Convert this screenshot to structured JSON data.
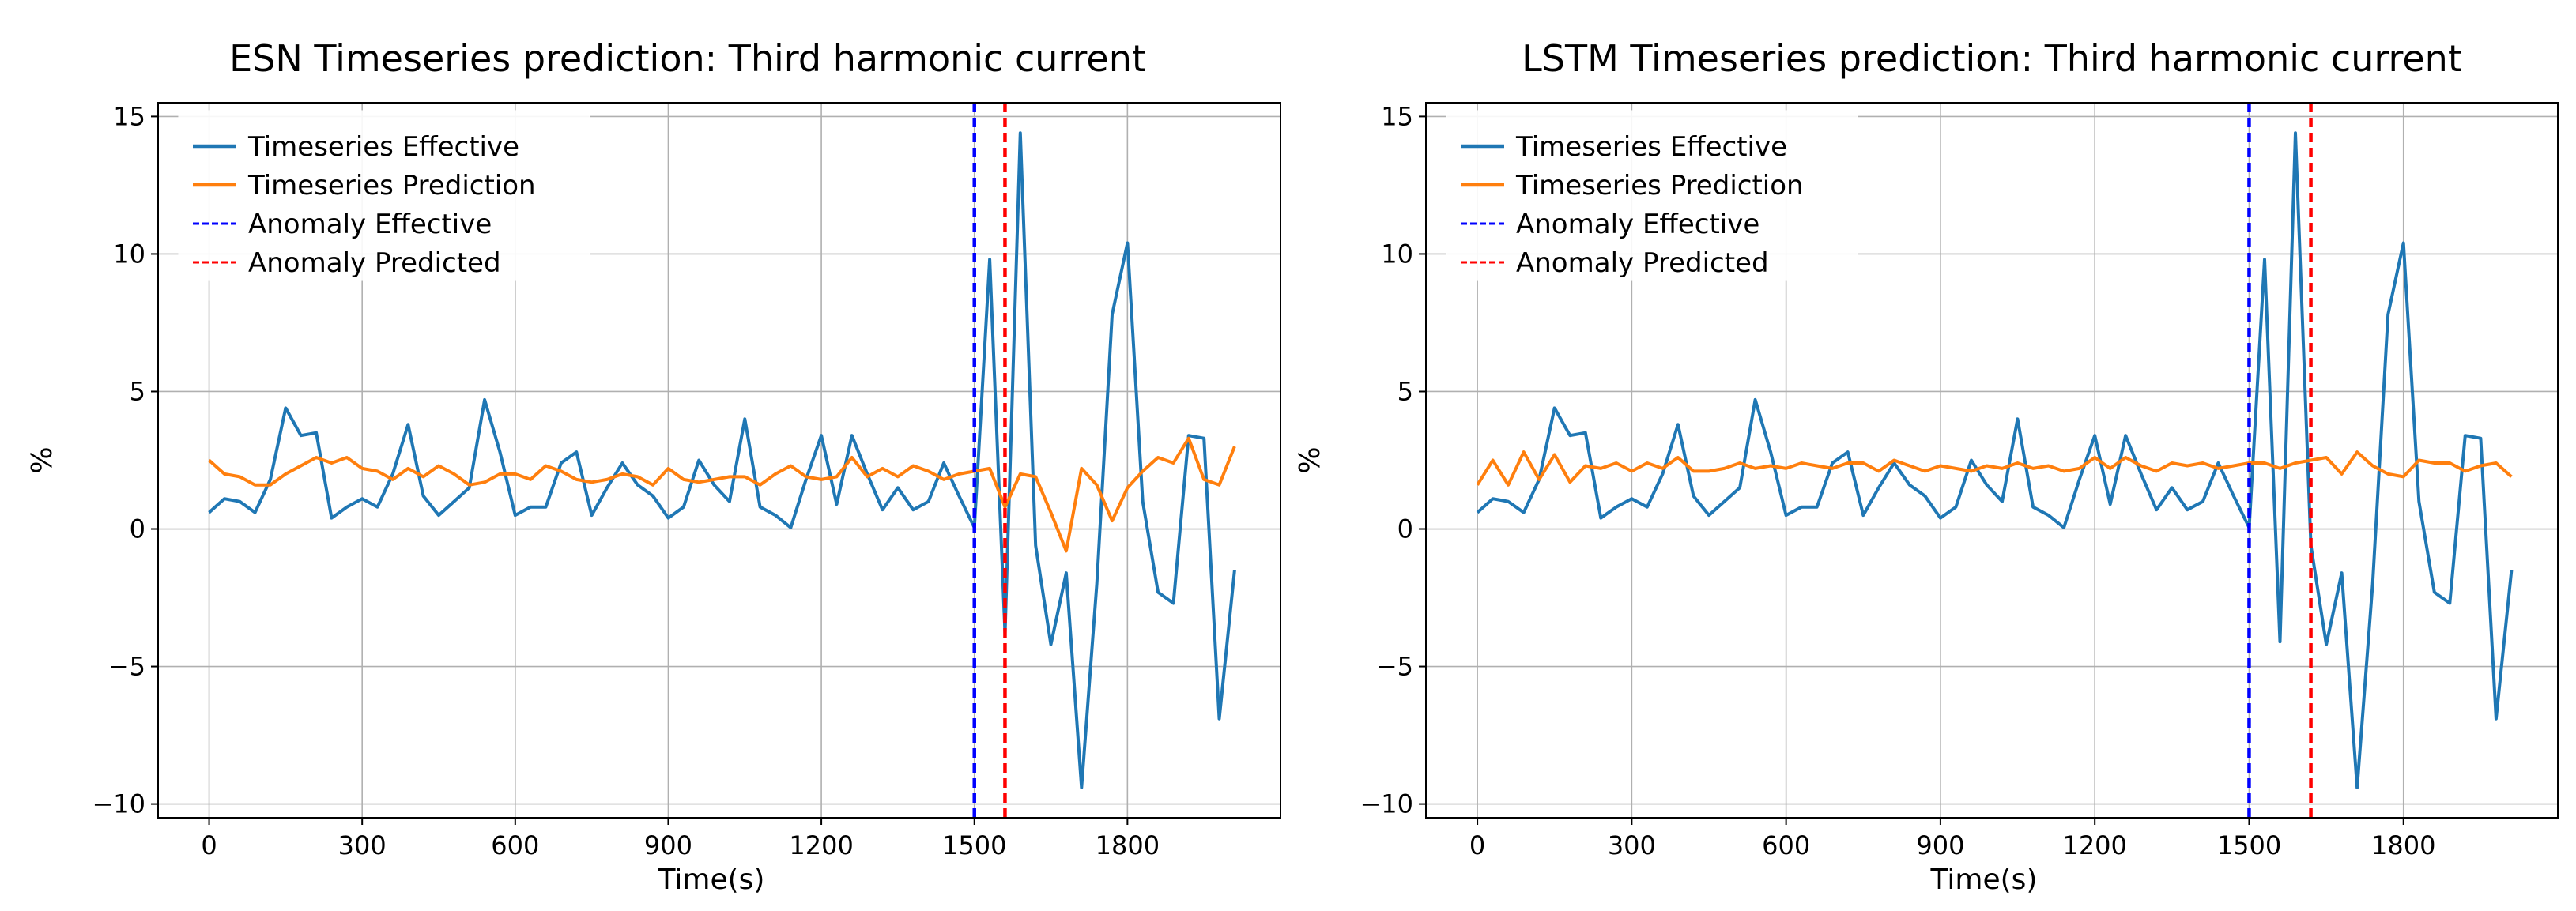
{
  "chart_data": [
    {
      "type": "line",
      "title": "ESN Timeseries prediction: Third harmonic current",
      "xlabel": "Time(s)",
      "ylabel": "%",
      "xlim": [
        -100,
        2100
      ],
      "ylim": [
        -10.5,
        15.5
      ],
      "xticks": [
        0,
        300,
        600,
        900,
        1200,
        1500,
        1800
      ],
      "xtick_labels": [
        "0",
        "300",
        "600",
        "900",
        "1200",
        "1500",
        "1800"
      ],
      "yticks": [
        -10,
        -5,
        0,
        5,
        10,
        15
      ],
      "ytick_labels": [
        "−10",
        "−5",
        "0",
        "5",
        "10",
        "15"
      ],
      "grid": true,
      "legend_position": "top-left",
      "series": [
        {
          "name": "Timeseries Effective",
          "color": "#1f77b4",
          "style": "solid",
          "x": [
            0,
            30,
            60,
            90,
            120,
            150,
            180,
            210,
            240,
            270,
            300,
            330,
            360,
            390,
            420,
            450,
            480,
            510,
            540,
            570,
            600,
            630,
            660,
            690,
            720,
            750,
            780,
            810,
            840,
            870,
            900,
            930,
            960,
            990,
            1020,
            1050,
            1080,
            1110,
            1140,
            1170,
            1200,
            1230,
            1260,
            1290,
            1320,
            1350,
            1380,
            1410,
            1440,
            1470,
            1500,
            1530,
            1560,
            1590,
            1620,
            1650,
            1680,
            1710,
            1740,
            1770,
            1800,
            1830,
            1860,
            1890,
            1920,
            1950,
            1980,
            2010
          ],
          "y": [
            0.6,
            1.1,
            1.0,
            0.6,
            1.8,
            4.4,
            3.4,
            3.5,
            0.4,
            0.8,
            1.1,
            0.8,
            2.0,
            3.8,
            1.2,
            0.5,
            1.0,
            1.5,
            4.7,
            2.8,
            0.5,
            0.8,
            0.8,
            2.4,
            2.8,
            0.5,
            1.5,
            2.4,
            1.6,
            1.2,
            0.4,
            0.8,
            2.5,
            1.6,
            1.0,
            4.0,
            0.8,
            0.5,
            0.05,
            1.8,
            3.4,
            0.9,
            3.4,
            2.0,
            0.7,
            1.5,
            0.7,
            1.0,
            2.4,
            1.2,
            0.05,
            9.8,
            -3.8,
            14.4,
            -0.6,
            -4.2,
            -1.6,
            -9.4,
            -2.0,
            7.8,
            10.4,
            1.0,
            -2.3,
            -2.7,
            3.4,
            3.3,
            -6.9,
            -1.5
          ]
        },
        {
          "name": "Timeseries Prediction",
          "color": "#ff7f0e",
          "style": "solid",
          "x": [
            0,
            30,
            60,
            90,
            120,
            150,
            180,
            210,
            240,
            270,
            300,
            330,
            360,
            390,
            420,
            450,
            480,
            510,
            540,
            570,
            600,
            630,
            660,
            690,
            720,
            750,
            780,
            810,
            840,
            870,
            900,
            930,
            960,
            990,
            1020,
            1050,
            1080,
            1110,
            1140,
            1170,
            1200,
            1230,
            1260,
            1290,
            1320,
            1350,
            1380,
            1410,
            1440,
            1470,
            1500,
            1530,
            1560,
            1590,
            1620,
            1650,
            1680,
            1710,
            1740,
            1770,
            1800,
            1830,
            1860,
            1890,
            1920,
            1950,
            1980,
            2010
          ],
          "y": [
            2.5,
            2.0,
            1.9,
            1.6,
            1.6,
            2.0,
            2.3,
            2.6,
            2.4,
            2.6,
            2.2,
            2.1,
            1.8,
            2.2,
            1.9,
            2.3,
            2.0,
            1.6,
            1.7,
            2.0,
            2.0,
            1.8,
            2.3,
            2.1,
            1.8,
            1.7,
            1.8,
            2.0,
            1.9,
            1.6,
            2.2,
            1.8,
            1.7,
            1.8,
            1.9,
            1.9,
            1.6,
            2.0,
            2.3,
            1.9,
            1.8,
            1.9,
            2.6,
            1.9,
            2.2,
            1.9,
            2.3,
            2.1,
            1.8,
            2.0,
            2.1,
            2.2,
            0.8,
            2.0,
            1.9,
            0.6,
            -0.8,
            2.2,
            1.6,
            0.3,
            1.5,
            2.1,
            2.6,
            2.4,
            3.3,
            1.8,
            1.6,
            3.0
          ]
        },
        {
          "name": "Anomaly Effective",
          "color": "#0000ff",
          "style": "dashed",
          "vline": 1500
        },
        {
          "name": "Anomaly Predicted",
          "color": "#ff0000",
          "style": "dashed",
          "vline": 1560
        }
      ]
    },
    {
      "type": "line",
      "title": "LSTM Timeseries prediction: Third harmonic current",
      "xlabel": "Time(s)",
      "ylabel": "%",
      "xlim": [
        -100,
        2100
      ],
      "ylim": [
        -10.5,
        15.5
      ],
      "xticks": [
        0,
        300,
        600,
        900,
        1200,
        1500,
        1800
      ],
      "xtick_labels": [
        "0",
        "300",
        "600",
        "900",
        "1200",
        "1500",
        "1800"
      ],
      "yticks": [
        -10,
        -5,
        0,
        5,
        10,
        15
      ],
      "ytick_labels": [
        "−10",
        "−5",
        "0",
        "5",
        "10",
        "15"
      ],
      "grid": true,
      "legend_position": "top-left",
      "series": [
        {
          "name": "Timeseries Effective",
          "color": "#1f77b4",
          "style": "solid",
          "x": [
            0,
            30,
            60,
            90,
            120,
            150,
            180,
            210,
            240,
            270,
            300,
            330,
            360,
            390,
            420,
            450,
            480,
            510,
            540,
            570,
            600,
            630,
            660,
            690,
            720,
            750,
            780,
            810,
            840,
            870,
            900,
            930,
            960,
            990,
            1020,
            1050,
            1080,
            1110,
            1140,
            1170,
            1200,
            1230,
            1260,
            1290,
            1320,
            1350,
            1380,
            1410,
            1440,
            1470,
            1500,
            1530,
            1560,
            1590,
            1620,
            1650,
            1680,
            1710,
            1740,
            1770,
            1800,
            1830,
            1860,
            1890,
            1920,
            1950,
            1980,
            2010
          ],
          "y": [
            0.6,
            1.1,
            1.0,
            0.6,
            1.8,
            4.4,
            3.4,
            3.5,
            0.4,
            0.8,
            1.1,
            0.8,
            2.0,
            3.8,
            1.2,
            0.5,
            1.0,
            1.5,
            4.7,
            2.8,
            0.5,
            0.8,
            0.8,
            2.4,
            2.8,
            0.5,
            1.5,
            2.4,
            1.6,
            1.2,
            0.4,
            0.8,
            2.5,
            1.6,
            1.0,
            4.0,
            0.8,
            0.5,
            0.05,
            1.8,
            3.4,
            0.9,
            3.4,
            2.0,
            0.7,
            1.5,
            0.7,
            1.0,
            2.4,
            1.2,
            0.05,
            9.8,
            -4.1,
            14.4,
            -0.6,
            -4.2,
            -1.6,
            -9.4,
            -2.0,
            7.8,
            10.4,
            1.0,
            -2.3,
            -2.7,
            3.4,
            3.3,
            -6.9,
            -1.5
          ]
        },
        {
          "name": "Timeseries Prediction",
          "color": "#ff7f0e",
          "style": "solid",
          "x": [
            0,
            30,
            60,
            90,
            120,
            150,
            180,
            210,
            240,
            270,
            300,
            330,
            360,
            390,
            420,
            450,
            480,
            510,
            540,
            570,
            600,
            630,
            660,
            690,
            720,
            750,
            780,
            810,
            840,
            870,
            900,
            930,
            960,
            990,
            1020,
            1050,
            1080,
            1110,
            1140,
            1170,
            1200,
            1230,
            1260,
            1290,
            1320,
            1350,
            1380,
            1410,
            1440,
            1470,
            1500,
            1530,
            1560,
            1590,
            1620,
            1650,
            1680,
            1710,
            1740,
            1770,
            1800,
            1830,
            1860,
            1890,
            1920,
            1950,
            1980,
            2010
          ],
          "y": [
            1.6,
            2.5,
            1.6,
            2.8,
            1.8,
            2.7,
            1.7,
            2.3,
            2.2,
            2.4,
            2.1,
            2.4,
            2.2,
            2.6,
            2.1,
            2.1,
            2.2,
            2.4,
            2.2,
            2.3,
            2.2,
            2.4,
            2.3,
            2.2,
            2.4,
            2.4,
            2.1,
            2.5,
            2.3,
            2.1,
            2.3,
            2.2,
            2.1,
            2.3,
            2.2,
            2.4,
            2.2,
            2.3,
            2.1,
            2.2,
            2.6,
            2.2,
            2.6,
            2.3,
            2.1,
            2.4,
            2.3,
            2.4,
            2.2,
            2.3,
            2.4,
            2.4,
            2.2,
            2.4,
            2.5,
            2.6,
            2.0,
            2.8,
            2.3,
            2.0,
            1.9,
            2.5,
            2.4,
            2.4,
            2.1,
            2.3,
            2.4,
            1.9
          ]
        },
        {
          "name": "Anomaly Effective",
          "color": "#0000ff",
          "style": "dashed",
          "vline": 1500
        },
        {
          "name": "Anomaly Predicted",
          "color": "#ff0000",
          "style": "dashed",
          "vline": 1620
        }
      ]
    }
  ]
}
